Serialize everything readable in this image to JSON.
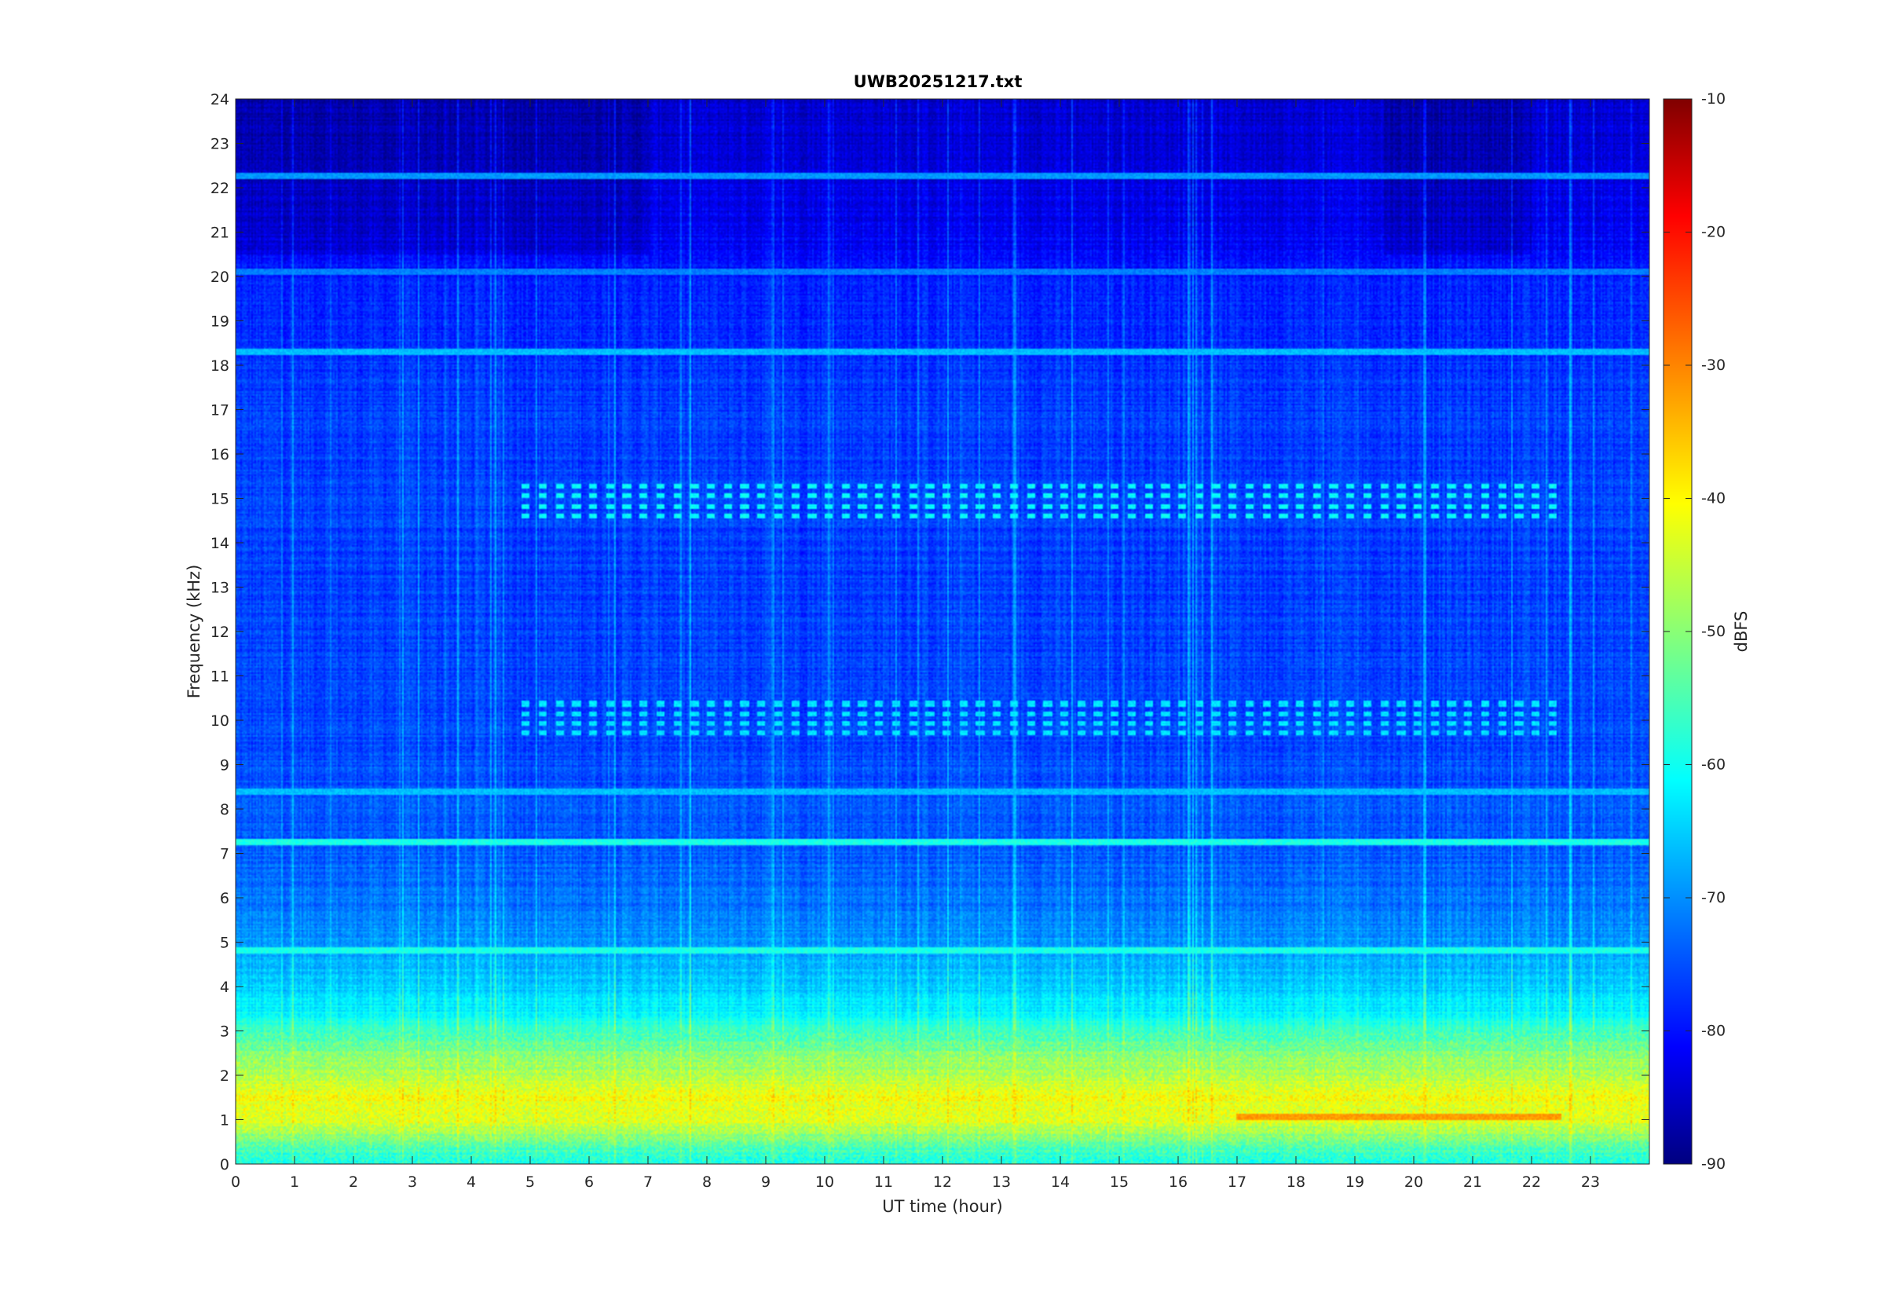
{
  "chart_data": {
    "type": "heatmap",
    "title": "UWB20251217.txt",
    "xlabel": "UT time (hour)",
    "ylabel": "Frequency (kHz)",
    "colorbar_label": "dBFS",
    "xlim": [
      0,
      24
    ],
    "ylim": [
      0,
      24
    ],
    "clim": [
      -90,
      -10
    ],
    "colormap": "jet",
    "x_ticks": [
      "0",
      "1",
      "2",
      "3",
      "4",
      "5",
      "6",
      "7",
      "8",
      "9",
      "10",
      "11",
      "12",
      "13",
      "14",
      "15",
      "16",
      "17",
      "18",
      "19",
      "20",
      "21",
      "22",
      "23"
    ],
    "y_ticks": [
      "0",
      "1",
      "2",
      "3",
      "4",
      "5",
      "6",
      "7",
      "8",
      "9",
      "10",
      "11",
      "12",
      "13",
      "14",
      "15",
      "16",
      "17",
      "18",
      "19",
      "20",
      "21",
      "22",
      "23",
      "24"
    ],
    "colorbar_ticks": [
      "-10",
      "-20",
      "-30",
      "-40",
      "-50",
      "-60",
      "-70",
      "-80",
      "-90"
    ],
    "colorbar_tick_values": [
      -10,
      -20,
      -30,
      -40,
      -50,
      -60,
      -70,
      -80,
      -90
    ],
    "frequency_profile_khz_dbfs": [
      [
        0.0,
        -58
      ],
      [
        0.3,
        -55
      ],
      [
        0.6,
        -50
      ],
      [
        1.0,
        -42
      ],
      [
        1.5,
        -41
      ],
      [
        2.0,
        -46
      ],
      [
        2.5,
        -50
      ],
      [
        3.0,
        -56
      ],
      [
        3.5,
        -61
      ],
      [
        4.0,
        -64
      ],
      [
        4.8,
        -67
      ],
      [
        5.5,
        -70
      ],
      [
        6.5,
        -72
      ],
      [
        7.5,
        -73
      ],
      [
        9.0,
        -74
      ],
      [
        12.0,
        -75
      ],
      [
        16.0,
        -75
      ],
      [
        18.5,
        -76
      ],
      [
        20.0,
        -78
      ],
      [
        21.0,
        -81
      ],
      [
        24.0,
        -84
      ]
    ],
    "horizontal_lines": [
      {
        "freq_khz": 1.05,
        "t_start": 17.0,
        "t_end": 22.5,
        "dbfs": -32
      },
      {
        "freq_khz": 4.8,
        "t_start": 0.0,
        "t_end": 24.0,
        "dbfs": -58
      },
      {
        "freq_khz": 7.25,
        "t_start": 0.0,
        "t_end": 24.0,
        "dbfs": -58
      },
      {
        "freq_khz": 8.4,
        "t_start": 0.0,
        "t_end": 24.0,
        "dbfs": -65
      },
      {
        "freq_khz": 18.3,
        "t_start": 0.0,
        "t_end": 24.0,
        "dbfs": -65
      },
      {
        "freq_khz": 20.1,
        "t_start": 0.0,
        "t_end": 24.0,
        "dbfs": -70
      },
      {
        "freq_khz": 22.25,
        "t_start": 0.0,
        "t_end": 24.0,
        "dbfs": -68
      }
    ],
    "pulsed_bands": [
      {
        "freq_khz": 15.0,
        "t_start": 4.8,
        "t_end": 22.5,
        "dbfs": -60
      },
      {
        "freq_khz": 10.1,
        "t_start": 4.8,
        "t_end": 22.5,
        "dbfs": -62
      }
    ],
    "dark_periods": [
      {
        "t_start": 0.0,
        "t_end": 7.0
      },
      {
        "t_start": 19.5,
        "t_end": 22.0
      }
    ]
  }
}
